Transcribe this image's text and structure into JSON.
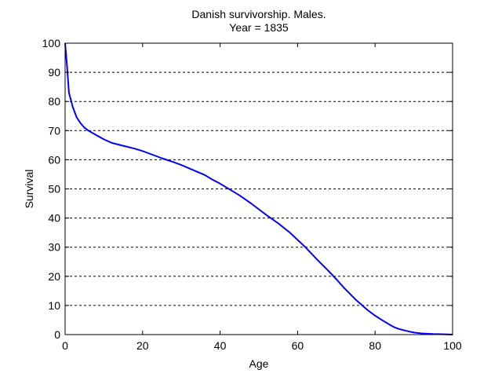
{
  "chart_data": {
    "type": "line",
    "title": [
      "Danish survivorship. Males.",
      "Year = 1835"
    ],
    "xlabel": "Age",
    "ylabel": "Survival",
    "xlim": [
      0,
      100
    ],
    "ylim": [
      0,
      100
    ],
    "xticks": [
      0,
      20,
      40,
      60,
      80,
      100
    ],
    "yticks": [
      0,
      10,
      20,
      30,
      40,
      50,
      60,
      70,
      80,
      90,
      100
    ],
    "grid": "horizontal dashed",
    "line_color": "#0000ff",
    "series": [
      {
        "x": [
          0,
          0.5,
          1,
          2,
          3,
          4,
          5,
          6,
          8,
          10,
          12,
          15,
          18,
          20,
          22,
          25,
          28,
          30,
          33,
          36,
          38,
          40,
          42,
          45,
          48,
          50,
          52,
          55,
          58,
          60,
          62,
          65,
          68,
          70,
          72,
          75,
          78,
          80,
          82,
          84,
          85,
          86,
          88,
          90,
          92,
          95,
          98,
          100
        ],
        "values": [
          100,
          92,
          83,
          78,
          74.5,
          72.5,
          71,
          70,
          68.5,
          67,
          65.8,
          64.8,
          63.8,
          63,
          62,
          60.5,
          59.2,
          58.2,
          56.5,
          54.8,
          53.2,
          51.8,
          50.2,
          47.8,
          45,
          43,
          41,
          38.2,
          35,
          32.5,
          30,
          25.8,
          21.8,
          19,
          16,
          12,
          8.5,
          6.5,
          4.8,
          3.2,
          2.5,
          2,
          1.3,
          0.7,
          0.4,
          0.2,
          0.1,
          0
        ]
      }
    ]
  }
}
